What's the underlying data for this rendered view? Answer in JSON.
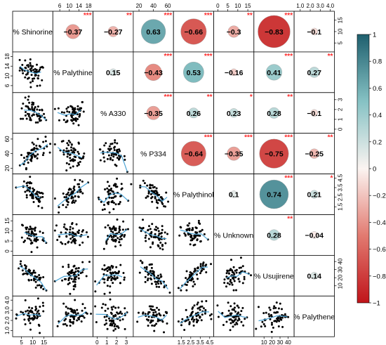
{
  "chart_data": {
    "type": "correlation-matrix",
    "variables": [
      "% Shinorine",
      "% Palythine",
      "% A330",
      "% P334",
      "% Palythinol",
      "% Unknown",
      "% Usujirene",
      "% Palythene"
    ],
    "correlations": [
      {
        "row": 0,
        "col": 1,
        "r": -0.37,
        "label": "−0.37",
        "stars": "***"
      },
      {
        "row": 0,
        "col": 2,
        "r": -0.27,
        "label": "−0.27",
        "stars": "**"
      },
      {
        "row": 0,
        "col": 3,
        "r": 0.63,
        "label": "0.63",
        "stars": "***"
      },
      {
        "row": 0,
        "col": 4,
        "r": -0.66,
        "label": "−0.66",
        "stars": "***"
      },
      {
        "row": 0,
        "col": 5,
        "r": -0.3,
        "label": "−0.3",
        "stars": "**"
      },
      {
        "row": 0,
        "col": 6,
        "r": -0.83,
        "label": "−0.83",
        "stars": "***"
      },
      {
        "row": 0,
        "col": 7,
        "r": -0.1,
        "label": "−0.1",
        "stars": ""
      },
      {
        "row": 1,
        "col": 2,
        "r": 0.15,
        "label": "0.15",
        "stars": ""
      },
      {
        "row": 1,
        "col": 3,
        "r": -0.43,
        "label": "−0.43",
        "stars": "***"
      },
      {
        "row": 1,
        "col": 4,
        "r": 0.53,
        "label": "0.53",
        "stars": "***"
      },
      {
        "row": 1,
        "col": 5,
        "r": -0.16,
        "label": "−0.16",
        "stars": ""
      },
      {
        "row": 1,
        "col": 6,
        "r": 0.41,
        "label": "0.41",
        "stars": "***"
      },
      {
        "row": 1,
        "col": 7,
        "r": 0.27,
        "label": "0.27",
        "stars": "**"
      },
      {
        "row": 2,
        "col": 3,
        "r": -0.35,
        "label": "−0.35",
        "stars": "***"
      },
      {
        "row": 2,
        "col": 4,
        "r": 0.26,
        "label": "0.26",
        "stars": "**"
      },
      {
        "row": 2,
        "col": 5,
        "r": 0.23,
        "label": "0.23",
        "stars": "*"
      },
      {
        "row": 2,
        "col": 6,
        "r": 0.28,
        "label": "0.28",
        "stars": "**"
      },
      {
        "row": 2,
        "col": 7,
        "r": -0.1,
        "label": "−0.1",
        "stars": ""
      },
      {
        "row": 3,
        "col": 4,
        "r": -0.64,
        "label": "−0.64",
        "stars": "***"
      },
      {
        "row": 3,
        "col": 5,
        "r": -0.35,
        "label": "−0.35",
        "stars": "***"
      },
      {
        "row": 3,
        "col": 6,
        "r": -0.75,
        "label": "−0.75",
        "stars": "***"
      },
      {
        "row": 3,
        "col": 7,
        "r": -0.25,
        "label": "−0.25",
        "stars": "**"
      },
      {
        "row": 4,
        "col": 5,
        "r": 0.1,
        "label": "0.1",
        "stars": ""
      },
      {
        "row": 4,
        "col": 6,
        "r": 0.74,
        "label": "0.74",
        "stars": "***"
      },
      {
        "row": 4,
        "col": 7,
        "r": 0.21,
        "label": "0.21",
        "stars": "*"
      },
      {
        "row": 5,
        "col": 6,
        "r": 0.28,
        "label": "0.28",
        "stars": "**"
      },
      {
        "row": 5,
        "col": 7,
        "r": -0.04,
        "label": "−0.04",
        "stars": ""
      },
      {
        "row": 6,
        "col": 7,
        "r": 0.14,
        "label": "0.14",
        "stars": ""
      }
    ],
    "ranges": [
      {
        "min": 2,
        "max": 18
      },
      {
        "min": 4,
        "max": 19
      },
      {
        "min": -0.2,
        "max": 3.5
      },
      {
        "min": 15,
        "max": 65
      },
      {
        "min": 0.9,
        "max": 4.7
      },
      {
        "min": -1,
        "max": 17
      },
      {
        "min": 0,
        "max": 45
      },
      {
        "min": 0.6,
        "max": 4.2
      }
    ],
    "axes": {
      "top": [
        {
          "col": 1,
          "ticks": [
            "6",
            "10",
            "14",
            "18"
          ],
          "values": [
            6,
            10,
            14,
            18
          ]
        },
        {
          "col": 3,
          "ticks": [
            "20",
            "40",
            "60"
          ],
          "values": [
            20,
            40,
            60
          ]
        },
        {
          "col": 5,
          "ticks": [
            "0",
            "5",
            "10",
            "15"
          ],
          "values": [
            0,
            5,
            10,
            15
          ]
        },
        {
          "col": 7,
          "ticks": [
            "1.0",
            "2.0",
            "3.0",
            "4.0"
          ],
          "values": [
            1,
            2,
            3,
            4
          ]
        }
      ],
      "bottom": [
        {
          "col": 0,
          "ticks": [
            "5",
            "10",
            "15"
          ],
          "values": [
            5,
            10,
            15
          ]
        },
        {
          "col": 2,
          "ticks": [
            "0",
            "1",
            "2",
            "3"
          ],
          "values": [
            0,
            1,
            2,
            3
          ]
        },
        {
          "col": 4,
          "ticks": [
            "1.5",
            "2.5",
            "3.5",
            "4.5"
          ],
          "values": [
            1.5,
            2.5,
            3.5,
            4.5
          ]
        },
        {
          "col": 6,
          "ticks": [
            "10",
            "20",
            "30",
            "40"
          ],
          "values": [
            10,
            20,
            30,
            40
          ]
        }
      ],
      "left": [
        {
          "row": 1,
          "ticks": [
            "6",
            "10",
            "14",
            "18"
          ],
          "values": [
            6,
            10,
            14,
            18
          ]
        },
        {
          "row": 3,
          "ticks": [
            "20",
            "40",
            "60"
          ],
          "values": [
            20,
            40,
            60
          ]
        },
        {
          "row": 5,
          "ticks": [
            "0",
            "5",
            "10",
            "15"
          ],
          "values": [
            0,
            5,
            10,
            15
          ]
        },
        {
          "row": 7,
          "ticks": [
            "1.0",
            "2.0",
            "3.0",
            "4.0"
          ],
          "values": [
            1,
            2,
            3,
            4
          ]
        }
      ],
      "right": [
        {
          "row": 0,
          "ticks": [
            "5",
            "10",
            "15"
          ],
          "values": [
            5,
            10,
            15
          ]
        },
        {
          "row": 2,
          "ticks": [
            "0",
            "1",
            "2",
            "3"
          ],
          "values": [
            0,
            1,
            2,
            3
          ]
        },
        {
          "row": 4,
          "ticks": [
            "1.5",
            "2.5",
            "3.5",
            "4.5"
          ],
          "values": [
            1.5,
            2.5,
            3.5,
            4.5
          ]
        },
        {
          "row": 6,
          "ticks": [
            "10",
            "20",
            "30",
            "40"
          ],
          "values": [
            10,
            20,
            30,
            40
          ]
        }
      ]
    },
    "colorbar": {
      "min": -1,
      "max": 1,
      "tick_values": [
        1,
        0.8,
        0.6,
        0.4,
        0.2,
        0,
        -0.2,
        -0.4,
        -0.6,
        -0.8,
        -1
      ],
      "tick_labels": [
        "1",
        "0.8",
        "0.6",
        "0.4",
        "0.2",
        "0",
        "−0.2",
        "−0.4",
        "−0.6",
        "−0.8",
        "−1"
      ],
      "stops": [
        {
          "v": -1,
          "color": "#c0141a"
        },
        {
          "v": -0.5,
          "color": "#e27a70"
        },
        {
          "v": 0,
          "color": "#fbf4f1"
        },
        {
          "v": 0.5,
          "color": "#86c2c4"
        },
        {
          "v": 1,
          "color": "#1e5f6e"
        }
      ]
    },
    "significance_color": "#ff2a2a",
    "smoother_color": "#4aa3d5",
    "point_color": "#000000",
    "sample_size_note": "scatter points approximated"
  }
}
